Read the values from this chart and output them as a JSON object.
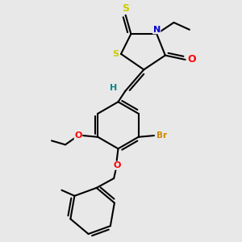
{
  "background_color": "#e8e8e8",
  "atom_colors": {
    "S": "#cccc00",
    "N": "#0000cc",
    "O": "#ff0000",
    "Br": "#cc8800",
    "H": "#008888",
    "C": "#000000"
  },
  "bond_color": "#000000",
  "bond_width": 1.5
}
